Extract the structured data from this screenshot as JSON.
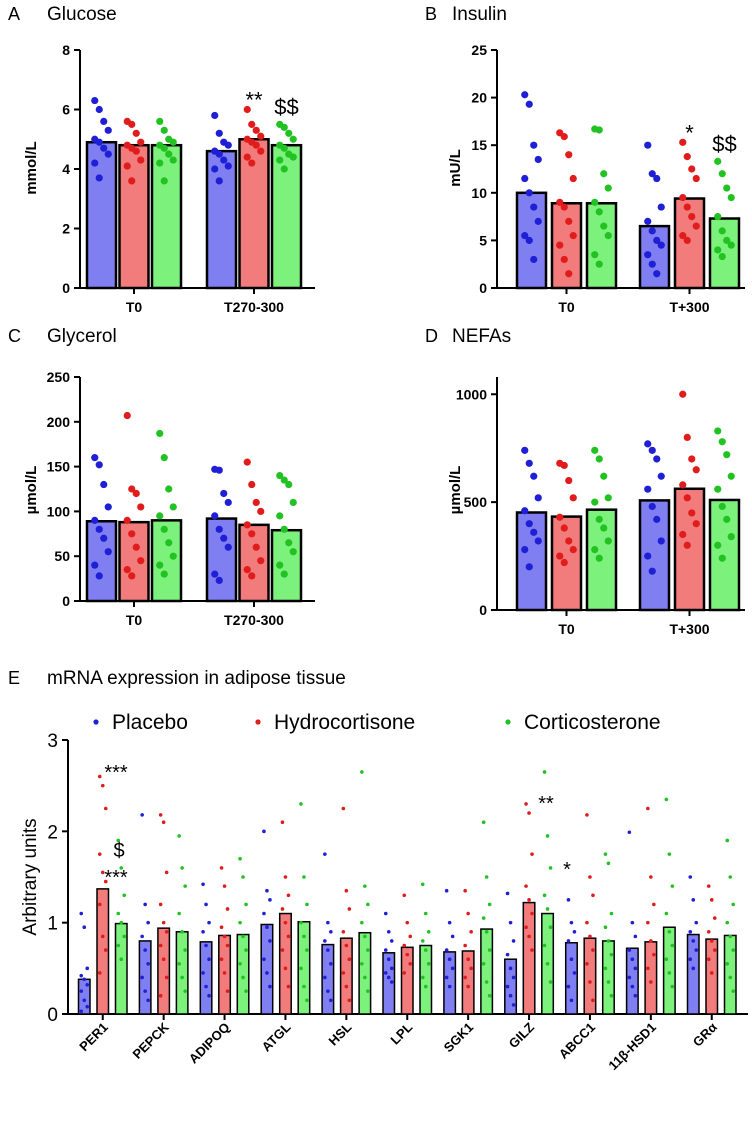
{
  "colors": {
    "placebo": "#7f7ff2",
    "hydrocortisone": "#f27b7b",
    "corticosterone": "#7cf27c",
    "dot_placebo": "#1f1fd6",
    "dot_hydrocortisone": "#e01c1c",
    "dot_corticosterone": "#22c222"
  },
  "legend": [
    {
      "label": "Placebo",
      "color": "#1f1fd6"
    },
    {
      "label": "Hydrocortisone",
      "color": "#e01c1c"
    },
    {
      "label": "Corticosterone",
      "color": "#22c222"
    }
  ],
  "chart_data": [
    {
      "panel": "A",
      "title": "Glucose",
      "type": "bar",
      "ylabel": "mmol/L",
      "ylim": [
        0,
        8
      ],
      "yticks": [
        0,
        2,
        4,
        6,
        8
      ],
      "groups": [
        "T0",
        "T270-300"
      ],
      "series": [
        {
          "name": "Placebo",
          "values": [
            4.9,
            4.6
          ],
          "points": [
            [
              6.3,
              6.0,
              5.6,
              5.3,
              5.0,
              4.9,
              4.7,
              4.5,
              4.2,
              3.7
            ],
            [
              5.8,
              5.2,
              4.9,
              4.8,
              4.6,
              4.5,
              4.3,
              4.1,
              4.0,
              3.6
            ]
          ]
        },
        {
          "name": "Hydrocortisone",
          "values": [
            4.8,
            5.0
          ],
          "points": [
            [
              5.6,
              5.5,
              5.2,
              4.9,
              4.8,
              4.7,
              4.6,
              4.3,
              4.1,
              3.6
            ],
            [
              6.0,
              5.5,
              5.3,
              5.1,
              5.0,
              4.9,
              4.8,
              4.6,
              4.4,
              4.2
            ]
          ]
        },
        {
          "name": "Corticosterone",
          "values": [
            4.8,
            4.8
          ],
          "points": [
            [
              5.6,
              5.3,
              5.0,
              4.9,
              4.8,
              4.7,
              4.5,
              4.3,
              4.2,
              3.6
            ],
            [
              5.5,
              5.4,
              5.2,
              5.0,
              4.8,
              4.7,
              4.5,
              4.4,
              4.3,
              4.0
            ]
          ]
        }
      ],
      "annotations": [
        {
          "text": "**",
          "group": 1,
          "series": 1
        },
        {
          "text": "$$",
          "group": 1,
          "series": 2
        }
      ]
    },
    {
      "panel": "B",
      "title": "Insulin",
      "type": "bar",
      "ylabel": "mU/L",
      "ylim": [
        0,
        25
      ],
      "yticks": [
        0,
        5,
        10,
        15,
        20,
        25
      ],
      "groups": [
        "T0",
        "T+300"
      ],
      "series": [
        {
          "name": "Placebo",
          "values": [
            10,
            6.5
          ],
          "points": [
            [
              20.3,
              19.3,
              15.0,
              13.5,
              11.5,
              10.0,
              8.5,
              7.0,
              5.5,
              5.0,
              3.0
            ],
            [
              15.0,
              12.0,
              11.5,
              8.5,
              7.0,
              6.0,
              5.0,
              4.5,
              3.5,
              2.5,
              1.5
            ]
          ]
        },
        {
          "name": "Hydrocortisone",
          "values": [
            8.9,
            9.4
          ],
          "points": [
            [
              16.3,
              15.9,
              14.0,
              11.5,
              9.0,
              8.5,
              7.0,
              5.5,
              4.5,
              3.0,
              1.5
            ],
            [
              15.3,
              13.8,
              12.5,
              11.5,
              9.5,
              8.5,
              7.5,
              6.5,
              5.5,
              5.0
            ]
          ]
        },
        {
          "name": "Corticosterone",
          "values": [
            8.9,
            7.3
          ],
          "points": [
            [
              16.7,
              16.6,
              12.0,
              10.5,
              9.0,
              8.0,
              6.5,
              5.5,
              3.5,
              2.5
            ],
            [
              13.3,
              12.0,
              10.5,
              9.5,
              7.5,
              6.0,
              5.0,
              4.5,
              4.0,
              3.3
            ]
          ]
        }
      ],
      "annotations": [
        {
          "text": "*",
          "group": 1,
          "series": 1
        },
        {
          "text": "$$",
          "group": 1,
          "series": 2
        }
      ]
    },
    {
      "panel": "C",
      "title": "Glycerol",
      "type": "bar",
      "ylabel": "µmol/L",
      "ylim": [
        0,
        250
      ],
      "yticks": [
        0,
        50,
        100,
        150,
        200,
        250
      ],
      "groups": [
        "T0",
        "T270-300"
      ],
      "series": [
        {
          "name": "Placebo",
          "values": [
            89,
            92
          ],
          "points": [
            [
              160,
              152,
              130,
              105,
              90,
              80,
              70,
              55,
              40,
              28
            ],
            [
              147,
              146,
              120,
              110,
              95,
              80,
              70,
              60,
              30,
              23
            ]
          ]
        },
        {
          "name": "Hydrocortisone",
          "values": [
            88,
            85
          ],
          "points": [
            [
              207,
              125,
              120,
              105,
              90,
              75,
              60,
              45,
              35,
              28
            ],
            [
              155,
              130,
              110,
              100,
              85,
              75,
              60,
              45,
              35,
              28
            ]
          ]
        },
        {
          "name": "Corticosterone",
          "values": [
            90,
            79
          ],
          "points": [
            [
              187,
              160,
              125,
              105,
              95,
              80,
              65,
              50,
              40,
              30
            ],
            [
              140,
              135,
              130,
              110,
              95,
              80,
              65,
              55,
              40,
              30
            ]
          ]
        }
      ],
      "annotations": []
    },
    {
      "panel": "D",
      "title": "NEFAs",
      "type": "bar",
      "ylabel": "µmol/L",
      "ylim": [
        0,
        1080
      ],
      "yticks": [
        0,
        500,
        1000
      ],
      "groups": [
        "T0",
        "T+300"
      ],
      "series": [
        {
          "name": "Placebo",
          "values": [
            452,
            508
          ],
          "points": [
            [
              740,
              680,
              620,
              520,
              460,
              400,
              360,
              320,
              280,
              200
            ],
            [
              770,
              740,
              700,
              620,
              560,
              480,
              420,
              320,
              250,
              180
            ]
          ]
        },
        {
          "name": "Hydrocortisone",
          "values": [
            433,
            562
          ],
          "points": [
            [
              680,
              670,
              600,
              520,
              430,
              380,
              320,
              280,
              250,
              220
            ],
            [
              1000,
              800,
              700,
              650,
              580,
              520,
              450,
              400,
              350,
              300
            ]
          ]
        },
        {
          "name": "Corticosterone",
          "values": [
            465,
            510
          ],
          "points": [
            [
              740,
              700,
              620,
              520,
              500,
              420,
              380,
              320,
              280,
              240
            ],
            [
              830,
              780,
              720,
              620,
              560,
              480,
              420,
              340,
              300,
              240
            ]
          ]
        }
      ],
      "annotations": []
    },
    {
      "panel": "E",
      "title": "mRNA expression in adipose tissue",
      "type": "bar",
      "ylabel": "Arbitrary units",
      "ylim": [
        0,
        3
      ],
      "yticks": [
        0,
        1,
        2,
        3
      ],
      "groups": [
        "PER1",
        "PEPCK",
        "ADIPOQ",
        "ATGL",
        "HSL",
        "LPL",
        "SGK1",
        "GILZ",
        "ABCC1",
        "11β-HSD1",
        "GRα"
      ],
      "series": [
        {
          "name": "Placebo",
          "values": [
            0.38,
            0.8,
            0.79,
            0.98,
            0.76,
            0.67,
            0.68,
            0.6,
            0.78,
            0.72,
            0.87
          ],
          "points": [
            [
              1.1,
              0.95,
              0.5,
              0.42,
              0.38,
              0.32,
              0.25,
              0.15,
              0.08,
              0.03
            ],
            [
              2.18,
              1.2,
              1.0,
              0.85,
              0.7,
              0.55,
              0.4,
              0.25,
              0.15
            ],
            [
              1.42,
              1.2,
              1.0,
              0.9,
              0.75,
              0.6,
              0.45,
              0.3,
              0.2
            ],
            [
              2.0,
              1.35,
              1.25,
              1.1,
              0.95,
              0.8,
              0.6,
              0.45,
              0.3
            ],
            [
              1.75,
              1.0,
              0.9,
              0.8,
              0.7,
              0.55,
              0.4,
              0.25,
              0.15
            ],
            [
              1.1,
              0.9,
              0.8,
              0.7,
              0.6,
              0.5,
              0.45,
              0.4,
              0.35
            ],
            [
              1.35,
              1.0,
              0.85,
              0.7,
              0.6,
              0.5,
              0.4,
              0.3
            ],
            [
              1.32,
              1.0,
              0.8,
              0.65,
              0.5,
              0.4,
              0.3,
              0.2,
              0.1
            ],
            [
              1.25,
              1.0,
              0.9,
              0.8,
              0.6,
              0.45,
              0.3,
              0.15
            ],
            [
              1.99,
              1.0,
              0.85,
              0.7,
              0.6,
              0.5,
              0.4,
              0.3,
              0.2
            ],
            [
              1.5,
              1.25,
              1.0,
              0.9,
              0.8,
              0.7,
              0.6,
              0.5
            ]
          ]
        },
        {
          "name": "Hydrocortisone",
          "values": [
            1.37,
            0.94,
            0.86,
            1.1,
            0.83,
            0.73,
            0.69,
            1.22,
            0.83,
            0.79,
            0.82
          ],
          "points": [
            [
              2.6,
              2.5,
              2.25,
              1.75,
              1.55,
              1.45,
              1.2,
              0.85,
              0.7,
              0.45
            ],
            [
              2.18,
              2.1,
              1.55,
              1.2,
              1.0,
              0.9,
              0.75,
              0.6,
              0.4,
              0.2
            ],
            [
              1.6,
              1.4,
              1.15,
              0.95,
              0.85,
              0.75,
              0.6,
              0.45,
              0.25
            ],
            [
              2.1,
              1.5,
              1.3,
              1.15,
              1.0,
              0.85,
              0.7,
              0.5,
              0.3
            ],
            [
              2.25,
              1.35,
              1.15,
              0.9,
              0.75,
              0.6,
              0.45,
              0.3,
              0.15
            ],
            [
              1.3,
              1.0,
              0.85,
              0.75,
              0.65,
              0.55,
              0.45
            ],
            [
              1.35,
              1.1,
              0.9,
              0.75,
              0.6,
              0.5,
              0.4,
              0.3
            ],
            [
              2.3,
              2.2,
              1.75,
              1.4,
              1.25,
              1.1,
              0.95,
              0.85,
              0.7
            ],
            [
              2.18,
              1.5,
              1.3,
              1.0,
              0.85,
              0.7,
              0.55,
              0.35,
              0.15
            ],
            [
              2.25,
              1.5,
              1.2,
              1.0,
              0.8,
              0.65,
              0.5,
              0.35
            ],
            [
              1.4,
              1.25,
              1.05,
              0.9,
              0.8,
              0.7,
              0.6,
              0.45
            ]
          ]
        },
        {
          "name": "Corticosterone",
          "values": [
            0.99,
            0.9,
            0.87,
            1.01,
            0.89,
            0.75,
            0.93,
            1.1,
            0.8,
            0.95,
            0.86
          ],
          "points": [
            [
              1.9,
              1.6,
              1.3,
              1.1,
              1.0,
              0.85,
              0.75,
              0.6
            ],
            [
              1.95,
              1.6,
              1.4,
              1.1,
              0.9,
              0.7,
              0.55,
              0.4,
              0.25
            ],
            [
              1.7,
              1.5,
              1.2,
              1.0,
              0.85,
              0.7,
              0.55,
              0.4,
              0.25
            ],
            [
              2.3,
              1.5,
              1.2,
              1.0,
              0.85,
              0.7,
              0.5,
              0.3,
              0.15
            ],
            [
              2.65,
              1.4,
              1.2,
              1.0,
              0.85,
              0.7,
              0.55,
              0.4,
              0.25
            ],
            [
              1.42,
              1.1,
              0.9,
              0.8,
              0.7,
              0.55,
              0.4,
              0.3
            ],
            [
              2.1,
              1.5,
              1.2,
              1.05,
              0.9,
              0.7,
              0.55,
              0.35,
              0.2
            ],
            [
              2.65,
              1.95,
              1.6,
              1.3,
              1.15,
              0.95,
              0.75,
              0.55,
              0.35
            ],
            [
              1.75,
              1.65,
              1.1,
              0.95,
              0.8,
              0.65,
              0.5,
              0.35,
              0.2
            ],
            [
              2.35,
              1.75,
              1.4,
              1.1,
              0.9,
              0.75,
              0.6,
              0.45,
              0.3
            ],
            [
              1.9,
              1.5,
              1.2,
              1.0,
              0.85,
              0.7,
              0.55,
              0.4,
              0.25
            ]
          ]
        }
      ],
      "annotations": [
        {
          "text": "***",
          "group": 0,
          "series": 1
        },
        {
          "text": "$",
          "group": 0,
          "series": 2
        },
        {
          "text": "***",
          "group": 0,
          "series": 2
        },
        {
          "text": "**",
          "group": 7,
          "series": 1
        },
        {
          "text": "*",
          "group": 7,
          "series": 2
        }
      ]
    }
  ]
}
